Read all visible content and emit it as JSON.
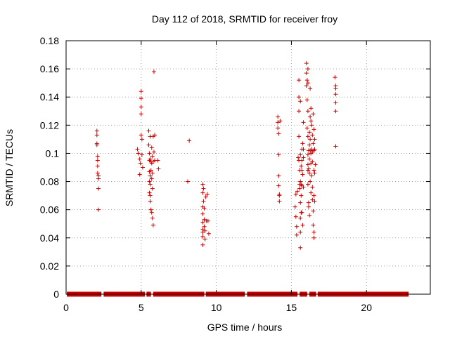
{
  "chart_data": {
    "type": "scatter",
    "title": "Day 112 of 2018, SRMTID for receiver froy",
    "xlabel": "GPS time / hours",
    "ylabel": "SRMTID / TECUs",
    "xlim": [
      0,
      24.25
    ],
    "ylim": [
      0,
      0.18
    ],
    "xticks": [
      0,
      5,
      10,
      15,
      20
    ],
    "xtick_labels": [
      "0",
      "5",
      "10",
      "15",
      "20"
    ],
    "yticks": [
      0,
      0.02,
      0.04,
      0.06,
      0.08,
      0.1,
      0.12,
      0.14,
      0.16,
      0.18
    ],
    "ytick_labels": [
      "0",
      "0.02",
      "0.04",
      "0.06",
      "0.08",
      "0.1",
      "0.12",
      "0.14",
      "0.16",
      "0.18"
    ],
    "grid": true,
    "marker": "+",
    "color": "#cc0000",
    "zero_baseline_segments": [
      [
        0.05,
        2.35
      ],
      [
        2.5,
        5.25
      ],
      [
        5.35,
        5.65
      ],
      [
        5.8,
        9.2
      ],
      [
        9.3,
        11.9
      ],
      [
        12.05,
        15.4
      ],
      [
        15.55,
        16.05
      ],
      [
        16.2,
        16.65
      ],
      [
        16.75,
        22.8
      ]
    ],
    "series": [
      {
        "name": "SRMTID",
        "points": [
          [
            2.05,
            0.116
          ],
          [
            2.05,
            0.113
          ],
          [
            2.05,
            0.107
          ],
          [
            2.05,
            0.106
          ],
          [
            2.1,
            0.098
          ],
          [
            2.1,
            0.095
          ],
          [
            2.1,
            0.091
          ],
          [
            2.1,
            0.086
          ],
          [
            2.15,
            0.084
          ],
          [
            2.15,
            0.082
          ],
          [
            2.15,
            0.075
          ],
          [
            2.15,
            0.06
          ],
          [
            4.75,
            0.103
          ],
          [
            4.8,
            0.1
          ],
          [
            4.9,
            0.096
          ],
          [
            4.9,
            0.085
          ],
          [
            4.95,
            0.093
          ],
          [
            5.0,
            0.144
          ],
          [
            5.0,
            0.139
          ],
          [
            5.0,
            0.133
          ],
          [
            5.0,
            0.128
          ],
          [
            5.0,
            0.113
          ],
          [
            5.05,
            0.11
          ],
          [
            5.05,
            0.099
          ],
          [
            5.1,
            0.09
          ],
          [
            5.5,
            0.116
          ],
          [
            5.5,
            0.106
          ],
          [
            5.55,
            0.1
          ],
          [
            5.55,
            0.095
          ],
          [
            5.55,
            0.087
          ],
          [
            5.55,
            0.08
          ],
          [
            5.55,
            0.072
          ],
          [
            5.6,
            0.112
          ],
          [
            5.6,
            0.096
          ],
          [
            5.6,
            0.084
          ],
          [
            5.6,
            0.078
          ],
          [
            5.6,
            0.07
          ],
          [
            5.6,
            0.066
          ],
          [
            5.65,
            0.094
          ],
          [
            5.65,
            0.088
          ],
          [
            5.65,
            0.06
          ],
          [
            5.7,
            0.104
          ],
          [
            5.7,
            0.093
          ],
          [
            5.7,
            0.082
          ],
          [
            5.7,
            0.058
          ],
          [
            5.75,
            0.098
          ],
          [
            5.75,
            0.086
          ],
          [
            5.75,
            0.075
          ],
          [
            5.75,
            0.054
          ],
          [
            5.8,
            0.112
          ],
          [
            5.8,
            0.094
          ],
          [
            5.8,
            0.049
          ],
          [
            5.85,
            0.101
          ],
          [
            5.85,
            0.158
          ],
          [
            5.9,
            0.113
          ],
          [
            5.9,
            0.095
          ],
          [
            6.1,
            0.095
          ],
          [
            6.15,
            0.089
          ],
          [
            8.1,
            0.08
          ],
          [
            8.2,
            0.109
          ],
          [
            9.1,
            0.078
          ],
          [
            9.1,
            0.072
          ],
          [
            9.1,
            0.062
          ],
          [
            9.1,
            0.057
          ],
          [
            9.1,
            0.051
          ],
          [
            9.1,
            0.046
          ],
          [
            9.1,
            0.044
          ],
          [
            9.1,
            0.041
          ],
          [
            9.1,
            0.035
          ],
          [
            9.15,
            0.075
          ],
          [
            9.15,
            0.066
          ],
          [
            9.2,
            0.061
          ],
          [
            9.2,
            0.053
          ],
          [
            9.2,
            0.048
          ],
          [
            9.25,
            0.045
          ],
          [
            9.25,
            0.039
          ],
          [
            9.3,
            0.069
          ],
          [
            9.35,
            0.052
          ],
          [
            9.4,
            0.071
          ],
          [
            9.45,
            0.052
          ],
          [
            9.5,
            0.043
          ],
          [
            14.1,
            0.126
          ],
          [
            14.1,
            0.122
          ],
          [
            14.1,
            0.118
          ],
          [
            14.15,
            0.114
          ],
          [
            14.15,
            0.099
          ],
          [
            14.15,
            0.084
          ],
          [
            14.15,
            0.077
          ],
          [
            14.2,
            0.071
          ],
          [
            14.2,
            0.07
          ],
          [
            14.2,
            0.066
          ],
          [
            14.25,
            0.123
          ],
          [
            15.25,
            0.062
          ],
          [
            15.3,
            0.071
          ],
          [
            15.3,
            0.055
          ],
          [
            15.35,
            0.048
          ],
          [
            15.35,
            0.042
          ],
          [
            15.4,
            0.073
          ],
          [
            15.45,
            0.097
          ],
          [
            15.5,
            0.152
          ],
          [
            15.5,
            0.14
          ],
          [
            15.5,
            0.13
          ],
          [
            15.5,
            0.112
          ],
          [
            15.5,
            0.095
          ],
          [
            15.55,
            0.088
          ],
          [
            15.55,
            0.078
          ],
          [
            15.55,
            0.075
          ],
          [
            15.6,
            0.137
          ],
          [
            15.6,
            0.099
          ],
          [
            15.6,
            0.08
          ],
          [
            15.6,
            0.065
          ],
          [
            15.6,
            0.054
          ],
          [
            15.6,
            0.044
          ],
          [
            15.6,
            0.033
          ],
          [
            15.65,
            0.091
          ],
          [
            15.65,
            0.078
          ],
          [
            15.65,
            0.07
          ],
          [
            15.65,
            0.058
          ],
          [
            15.7,
            0.103
          ],
          [
            15.7,
            0.095
          ],
          [
            15.7,
            0.088
          ],
          [
            15.7,
            0.077
          ],
          [
            15.7,
            0.058
          ],
          [
            15.75,
            0.107
          ],
          [
            15.75,
            0.085
          ],
          [
            15.75,
            0.049
          ],
          [
            15.8,
            0.122
          ],
          [
            15.8,
            0.103
          ],
          [
            15.8,
            0.097
          ],
          [
            15.8,
            0.076
          ],
          [
            16.0,
            0.164
          ],
          [
            16.0,
            0.157
          ],
          [
            16.0,
            0.148
          ],
          [
            16.05,
            0.152
          ],
          [
            16.05,
            0.138
          ],
          [
            16.05,
            0.118
          ],
          [
            16.1,
            0.16
          ],
          [
            16.1,
            0.15
          ],
          [
            16.1,
            0.13
          ],
          [
            16.1,
            0.112
          ],
          [
            16.1,
            0.099
          ],
          [
            16.1,
            0.092
          ],
          [
            16.1,
            0.088
          ],
          [
            16.1,
            0.078
          ],
          [
            16.15,
            0.102
          ],
          [
            16.15,
            0.089
          ],
          [
            16.15,
            0.065
          ],
          [
            16.15,
            0.062
          ],
          [
            16.2,
            0.115
          ],
          [
            16.2,
            0.106
          ],
          [
            16.2,
            0.096
          ],
          [
            16.2,
            0.086
          ],
          [
            16.2,
            0.056
          ],
          [
            16.25,
            0.146
          ],
          [
            16.25,
            0.126
          ],
          [
            16.25,
            0.11
          ],
          [
            16.25,
            0.102
          ],
          [
            16.25,
            0.08
          ],
          [
            16.3,
            0.132
          ],
          [
            16.3,
            0.123
          ],
          [
            16.3,
            0.1
          ],
          [
            16.3,
            0.093
          ],
          [
            16.3,
            0.072
          ],
          [
            16.35,
            0.12
          ],
          [
            16.35,
            0.103
          ],
          [
            16.35,
            0.084
          ],
          [
            16.4,
            0.113
          ],
          [
            16.4,
            0.101
          ],
          [
            16.4,
            0.094
          ],
          [
            16.4,
            0.076
          ],
          [
            16.4,
            0.067
          ],
          [
            16.45,
            0.128
          ],
          [
            16.45,
            0.107
          ],
          [
            16.45,
            0.059
          ],
          [
            16.45,
            0.049
          ],
          [
            16.5,
            0.117
          ],
          [
            16.5,
            0.102
          ],
          [
            16.5,
            0.088
          ],
          [
            16.5,
            0.07
          ],
          [
            16.5,
            0.044
          ],
          [
            16.5,
            0.04
          ],
          [
            16.55,
            0.11
          ],
          [
            16.55,
            0.103
          ],
          [
            16.55,
            0.086
          ],
          [
            16.55,
            0.066
          ],
          [
            16.6,
            0.092
          ],
          [
            17.9,
            0.154
          ],
          [
            17.95,
            0.148
          ],
          [
            17.95,
            0.146
          ],
          [
            17.95,
            0.142
          ],
          [
            17.95,
            0.136
          ],
          [
            17.95,
            0.13
          ],
          [
            17.95,
            0.105
          ]
        ]
      }
    ]
  }
}
